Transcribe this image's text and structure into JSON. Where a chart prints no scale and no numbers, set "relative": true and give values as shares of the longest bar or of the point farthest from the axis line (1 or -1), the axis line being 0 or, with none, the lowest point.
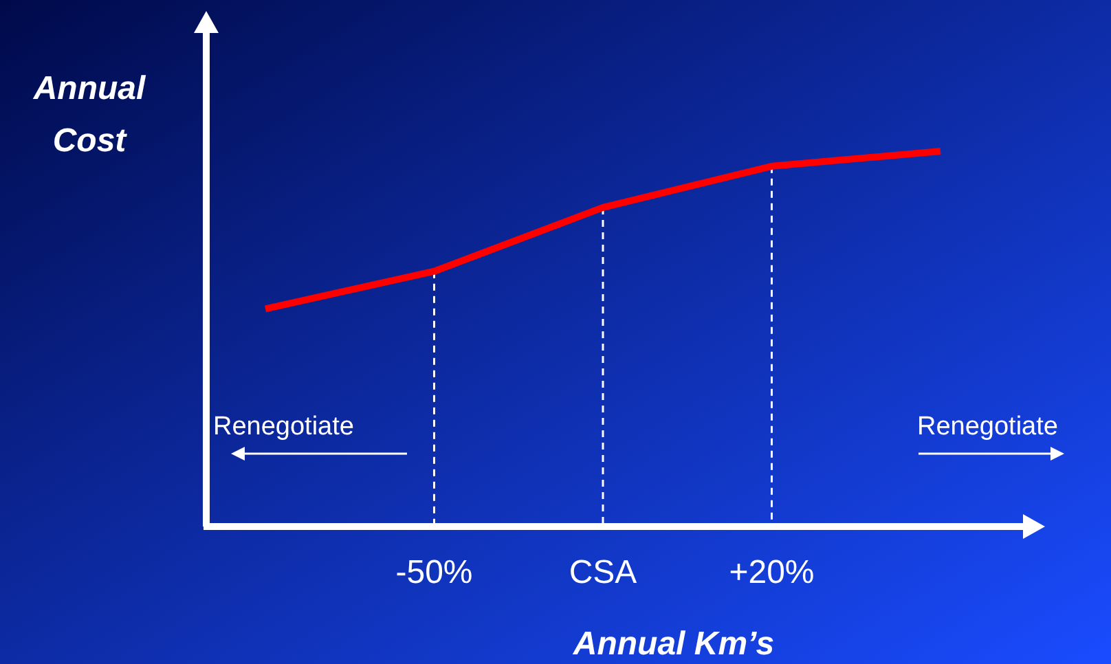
{
  "chart_data": {
    "type": "line",
    "relative": true,
    "xlabel": "Annual Km’s",
    "ylabel": "Annual Cost",
    "categories": [
      null,
      "-50%",
      "CSA",
      "+20%",
      null
    ],
    "series": [
      {
        "color": "#ff0000",
        "values": [
          0.58,
          0.68,
          0.85,
          0.96,
          1
        ]
      }
    ],
    "ref_lines": [
      {
        "axis": "x",
        "value": "-50%",
        "color": "#ffffff",
        "line_style": "dashed"
      },
      {
        "axis": "x",
        "value": "CSA",
        "color": "#ffffff",
        "line_style": "dashed"
      },
      {
        "axis": "x",
        "value": "+20%",
        "color": "#ffffff",
        "line_style": "dashed"
      }
    ],
    "annotations": [
      "Renegotiate",
      "Renegotiate"
    ],
    "grid": false,
    "marker": "none",
    "line_style": "solid"
  }
}
